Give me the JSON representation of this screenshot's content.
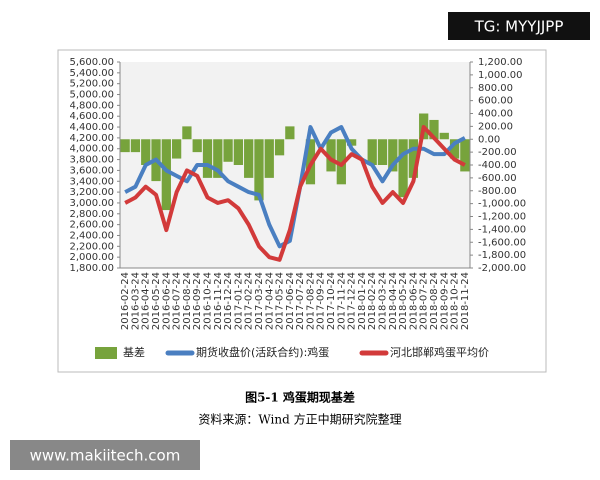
{
  "chart_data": {
    "type": "combo",
    "categories": [
      "2016-02-24",
      "2016-03-24",
      "2016-04-24",
      "2016-05-24",
      "2016-06-24",
      "2016-07-24",
      "2016-08-24",
      "2016-09-24",
      "2016-10-24",
      "2016-11-24",
      "2016-12-24",
      "2017-01-24",
      "2017-02-24",
      "2017-03-24",
      "2017-04-24",
      "2017-05-24",
      "2017-06-24",
      "2017-07-24",
      "2017-08-24",
      "2017-09-24",
      "2017-10-24",
      "2017-11-24",
      "2017-12-24",
      "2018-01-24",
      "2018-02-24",
      "2018-03-24",
      "2018-04-24",
      "2018-05-24",
      "2018-06-24",
      "2018-07-24",
      "2018-08-24",
      "2018-09-24",
      "2018-10-24",
      "2018-11-24"
    ],
    "series": [
      {
        "name": "基差",
        "type": "bar",
        "axis": "y2",
        "color": "#77a33c",
        "values": [
          -200,
          -200,
          -400,
          -650,
          -1100,
          -300,
          200,
          -200,
          -600,
          -600,
          -350,
          -400,
          -600,
          -950,
          -600,
          -250,
          200,
          0,
          -700,
          0,
          -500,
          -700,
          -100,
          0,
          -400,
          -400,
          -500,
          -900,
          -600,
          400,
          300,
          100,
          -300,
          -500
        ]
      },
      {
        "name": "期货收盘价(活跃合约):鸡蛋",
        "type": "line",
        "color": "#4a7fc1",
        "values": [
          3200,
          3300,
          3700,
          3800,
          3600,
          3500,
          3400,
          3700,
          3700,
          3600,
          3400,
          3300,
          3200,
          3150,
          2600,
          2200,
          2300,
          3300,
          4400,
          4000,
          4300,
          4400,
          4000,
          3800,
          3700,
          3400,
          3700,
          3900,
          4000,
          4000,
          3900,
          3900,
          4100,
          4200
        ]
      },
      {
        "name": "河北邯郸鸡蛋平均价",
        "type": "line",
        "color": "#d23a3a",
        "values": [
          3000,
          3100,
          3300,
          3150,
          2500,
          3200,
          3600,
          3500,
          3100,
          3000,
          3050,
          2900,
          2600,
          2200,
          2000,
          1950,
          2500,
          3300,
          3700,
          4000,
          3800,
          3700,
          3900,
          3800,
          3300,
          3000,
          3200,
          3000,
          3400,
          4400,
          4200,
          4000,
          3800,
          3700
        ]
      }
    ],
    "ylim": [
      1800,
      5600
    ],
    "yticks": [
      {
        "value": 1800,
        "label": "1,800.00"
      },
      {
        "value": 2000,
        "label": "2,000.00"
      },
      {
        "value": 2200,
        "label": "2,200.00"
      },
      {
        "value": 2400,
        "label": "2,400.00"
      },
      {
        "value": 2600,
        "label": "2,600.00"
      },
      {
        "value": 2800,
        "label": "2,800.00"
      },
      {
        "value": 3000,
        "label": "3,000.00"
      },
      {
        "value": 3200,
        "label": "3,200.00"
      },
      {
        "value": 3400,
        "label": "3,400.00"
      },
      {
        "value": 3600,
        "label": "3,600.00"
      },
      {
        "value": 3800,
        "label": "3,800.00"
      },
      {
        "value": 4000,
        "label": "4,000.00"
      },
      {
        "value": 4200,
        "label": "4,200.00"
      },
      {
        "value": 4400,
        "label": "4,400.00"
      },
      {
        "value": 4600,
        "label": "4,600.00"
      },
      {
        "value": 4800,
        "label": "4,800.00"
      },
      {
        "value": 5000,
        "label": "5,000.00"
      },
      {
        "value": 5200,
        "label": "5,200.00"
      },
      {
        "value": 5400,
        "label": "5,400.00"
      },
      {
        "value": 5600,
        "label": "5,600.00"
      }
    ],
    "y2lim": [
      -2000,
      1200
    ],
    "y2ticks": [
      {
        "value": -2000,
        "label": "-2,000.00"
      },
      {
        "value": -1800,
        "label": "-1,800.00"
      },
      {
        "value": -1600,
        "label": "-1,600.00"
      },
      {
        "value": -1400,
        "label": "-1,400.00"
      },
      {
        "value": -1200,
        "label": "-1,200.00"
      },
      {
        "value": -1000,
        "label": "-1,000.00"
      },
      {
        "value": -800,
        "label": "-800.00"
      },
      {
        "value": -600,
        "label": "-600.00"
      },
      {
        "value": -400,
        "label": "-400.00"
      },
      {
        "value": -200,
        "label": "-200.00"
      },
      {
        "value": 0,
        "label": "0.00"
      },
      {
        "value": 200,
        "label": "200.00"
      },
      {
        "value": 400,
        "label": "400.00"
      },
      {
        "value": 600,
        "label": "600.00"
      },
      {
        "value": 800,
        "label": "800.00"
      },
      {
        "value": 1000,
        "label": "1,000.00"
      },
      {
        "value": 1200,
        "label": "1,200.00"
      }
    ]
  },
  "caption": "图5-1  鸡蛋期现基差",
  "source": "资料来源：Wind  方正中期研究院整理",
  "watermarks": [
    "TG: MYYJJPP",
    "www.makiitech.com"
  ]
}
